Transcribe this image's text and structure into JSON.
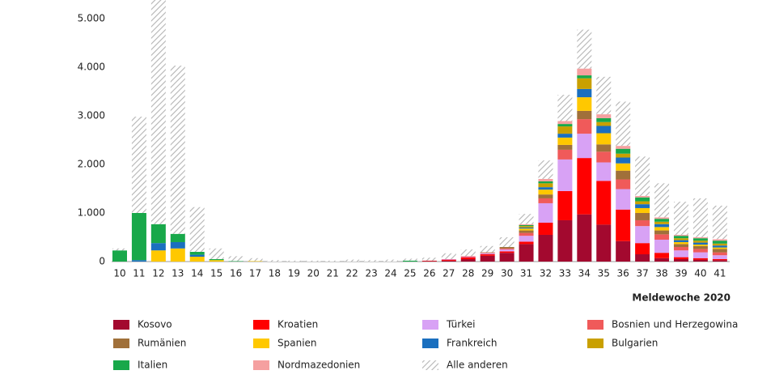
{
  "chart_data": {
    "type": "stacked_bar",
    "x_label": "Meldewoche 2020",
    "categories": [
      "10",
      "11",
      "12",
      "13",
      "14",
      "15",
      "16",
      "17",
      "18",
      "19",
      "20",
      "21",
      "22",
      "23",
      "24",
      "25",
      "26",
      "27",
      "28",
      "29",
      "30",
      "31",
      "32",
      "33",
      "34",
      "35",
      "36",
      "37",
      "38",
      "39",
      "40",
      "41"
    ],
    "ylim": [
      0,
      5380
    ],
    "yticks": [
      0,
      {
        "value": 1000,
        "label": "1.000"
      },
      {
        "value": 2000,
        "label": "2.000"
      },
      {
        "value": 3000,
        "label": "3.000"
      },
      {
        "value": 4000,
        "label": "4.000"
      },
      {
        "value": 5000,
        "label": "5.000"
      }
    ],
    "grid": false,
    "series": [
      {
        "name": "Kosovo",
        "color": "#a3092f",
        "values": [
          0,
          0,
          0,
          0,
          0,
          0,
          0,
          0,
          0,
          0,
          0,
          0,
          0,
          0,
          0,
          0,
          10,
          20,
          50,
          120,
          180,
          360,
          550,
          850,
          970,
          760,
          420,
          150,
          70,
          50,
          40,
          30
        ]
      },
      {
        "name": "Kroatien",
        "color": "#ff0000",
        "values": [
          0,
          0,
          0,
          0,
          0,
          0,
          0,
          0,
          0,
          0,
          0,
          0,
          0,
          0,
          0,
          0,
          10,
          20,
          40,
          30,
          30,
          50,
          250,
          600,
          1160,
          900,
          650,
          230,
          110,
          40,
          30,
          20
        ]
      },
      {
        "name": "Türkei",
        "color": "#d8a2f5",
        "values": [
          0,
          0,
          0,
          0,
          0,
          0,
          0,
          0,
          0,
          0,
          0,
          0,
          0,
          0,
          0,
          0,
          0,
          10,
          10,
          20,
          40,
          120,
          400,
          650,
          500,
          380,
          420,
          350,
          270,
          140,
          120,
          80
        ]
      },
      {
        "name": "Bosnien und Herzegowina",
        "color": "#f05a5a",
        "values": [
          0,
          0,
          0,
          0,
          0,
          0,
          0,
          0,
          0,
          0,
          0,
          0,
          0,
          0,
          0,
          0,
          0,
          0,
          10,
          10,
          20,
          60,
          100,
          200,
          300,
          220,
          200,
          120,
          110,
          70,
          70,
          60
        ]
      },
      {
        "name": "Rumänien",
        "color": "#a0703a",
        "values": [
          0,
          0,
          0,
          0,
          0,
          0,
          0,
          0,
          0,
          0,
          0,
          0,
          0,
          0,
          0,
          0,
          0,
          0,
          0,
          10,
          30,
          50,
          80,
          100,
          170,
          150,
          180,
          150,
          80,
          60,
          60,
          70
        ]
      },
      {
        "name": "Spanien",
        "color": "#ffc800",
        "values": [
          0,
          0,
          230,
          270,
          100,
          30,
          0,
          10,
          0,
          0,
          0,
          0,
          0,
          0,
          0,
          0,
          0,
          0,
          0,
          0,
          0,
          40,
          100,
          150,
          280,
          230,
          150,
          100,
          70,
          40,
          30,
          30
        ]
      },
      {
        "name": "Frankreich",
        "color": "#1a6fbf",
        "values": [
          0,
          30,
          150,
          130,
          40,
          0,
          0,
          0,
          0,
          0,
          0,
          0,
          0,
          0,
          0,
          0,
          0,
          0,
          0,
          0,
          0,
          20,
          50,
          80,
          170,
          150,
          120,
          80,
          60,
          40,
          40,
          40
        ]
      },
      {
        "name": "Bulgarien",
        "color": "#c9a000",
        "values": [
          0,
          0,
          0,
          0,
          0,
          0,
          0,
          0,
          0,
          0,
          0,
          0,
          0,
          0,
          0,
          0,
          0,
          0,
          0,
          0,
          0,
          30,
          80,
          150,
          220,
          80,
          80,
          60,
          50,
          40,
          40,
          40
        ]
      },
      {
        "name": "Italien",
        "color": "#18a84a",
        "values": [
          230,
          970,
          390,
          170,
          60,
          20,
          10,
          0,
          0,
          0,
          0,
          0,
          0,
          0,
          0,
          20,
          0,
          0,
          0,
          0,
          0,
          20,
          40,
          50,
          60,
          80,
          100,
          80,
          60,
          50,
          50,
          60
        ]
      },
      {
        "name": "Nordmazedonien",
        "color": "#f5a0a0",
        "values": [
          0,
          0,
          0,
          0,
          0,
          0,
          0,
          0,
          0,
          0,
          0,
          0,
          0,
          0,
          0,
          0,
          0,
          0,
          0,
          0,
          0,
          20,
          50,
          60,
          140,
          80,
          60,
          30,
          30,
          20,
          20,
          30
        ]
      },
      {
        "name": "Alle anderen",
        "color": "#b4b4b4",
        "hatch": true,
        "values": [
          40,
          1980,
          4610,
          3460,
          920,
          220,
          100,
          60,
          30,
          20,
          20,
          20,
          40,
          30,
          40,
          40,
          60,
          120,
          140,
          130,
          200,
          210,
          380,
          540,
          800,
          770,
          910,
          810,
          700,
          680,
          800,
          690
        ]
      }
    ]
  }
}
